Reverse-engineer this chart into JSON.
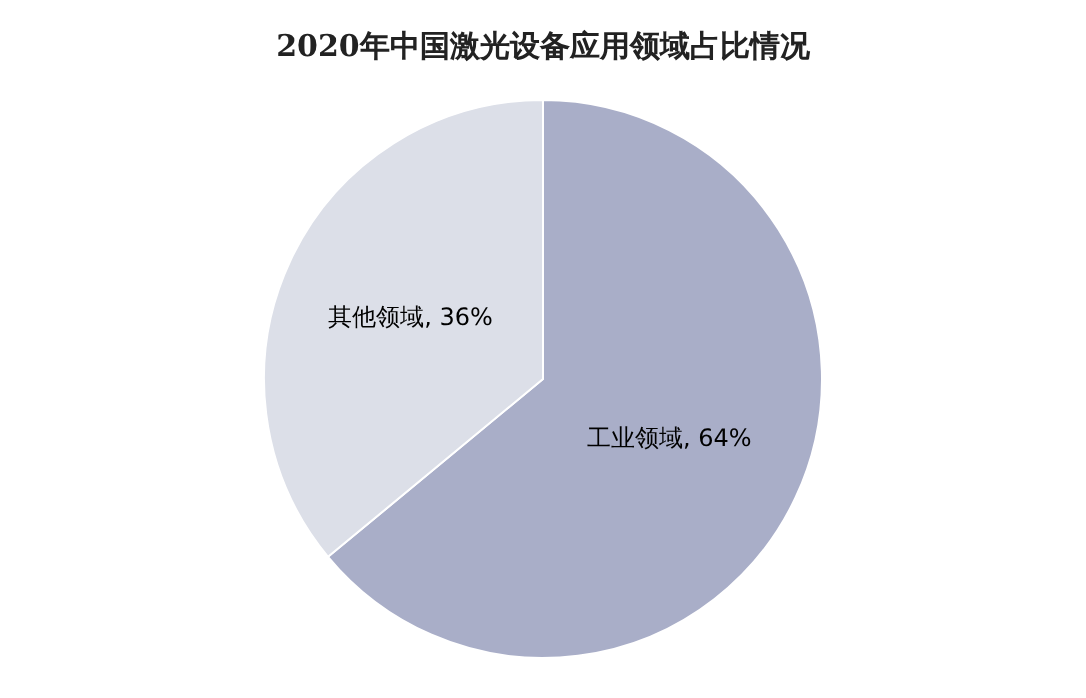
{
  "chart_data": {
    "type": "pie",
    "title": "2020年中国激光设备应用领域占比情况",
    "categories": [
      "工业领域",
      "其他领域"
    ],
    "values": [
      64,
      36
    ],
    "value_labels": [
      "64%",
      "36%"
    ],
    "colors": [
      "#a9aec8",
      "#dcdfe8"
    ],
    "legend": false
  }
}
